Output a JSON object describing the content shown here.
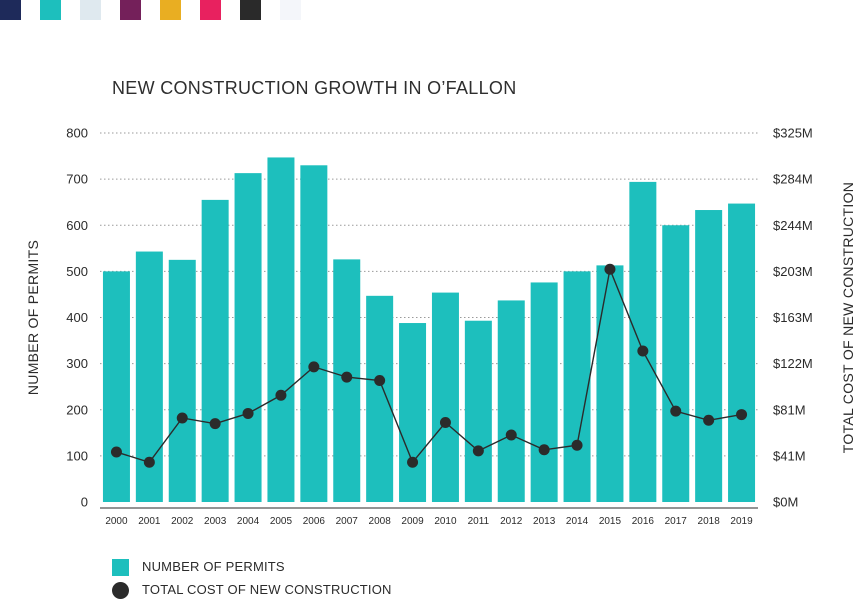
{
  "palette": [
    "#1e2a5a",
    "#1dbfbd",
    "#dfe9ef",
    "#74205a",
    "#e9ae22",
    "#e8215f",
    "#2a2a2a",
    "#f4f6fa"
  ],
  "colors": {
    "bar": "#1dbfbd",
    "line": "#2b2b2b",
    "grid": "#9a9a9a"
  },
  "chart_data": {
    "type": "bar",
    "title": "NEW CONSTRUCTION GROWTH IN O’FALLON",
    "ylabel": "NUMBER OF PERMITS",
    "y2label": "TOTAL COST OF NEW CONSTRUCTION",
    "categories": [
      "2000",
      "2001",
      "2002",
      "2003",
      "2004",
      "2005",
      "2006",
      "2007",
      "2008",
      "2009",
      "2010",
      "2011",
      "2012",
      "2013",
      "2014",
      "2015",
      "2016",
      "2017",
      "2018",
      "2019"
    ],
    "ylim": [
      0,
      800
    ],
    "y2lim": [
      0,
      325
    ],
    "yticks": [
      0,
      100,
      200,
      300,
      400,
      500,
      600,
      700,
      800
    ],
    "y2ticks": [
      "$0M",
      "$41M",
      "$81M",
      "$122M",
      "$163M",
      "$203M",
      "$244M",
      "$284M",
      "$325M"
    ],
    "grid": true,
    "legend_position": "bottom-left",
    "series": [
      {
        "name": "NUMBER OF PERMITS",
        "kind": "bar",
        "axis": "left",
        "values": [
          500,
          543,
          525,
          655,
          713,
          747,
          730,
          526,
          447,
          388,
          454,
          393,
          437,
          476,
          500,
          513,
          694,
          600,
          633,
          647
        ]
      },
      {
        "name": "TOTAL COST OF NEW CONSTRUCTION",
        "kind": "line",
        "axis": "right",
        "unit": "$M",
        "values": [
          44,
          35,
          74,
          69,
          78,
          94,
          119,
          110,
          107,
          35,
          70,
          45,
          59,
          46,
          50,
          205,
          133,
          80,
          72,
          77
        ]
      }
    ]
  }
}
